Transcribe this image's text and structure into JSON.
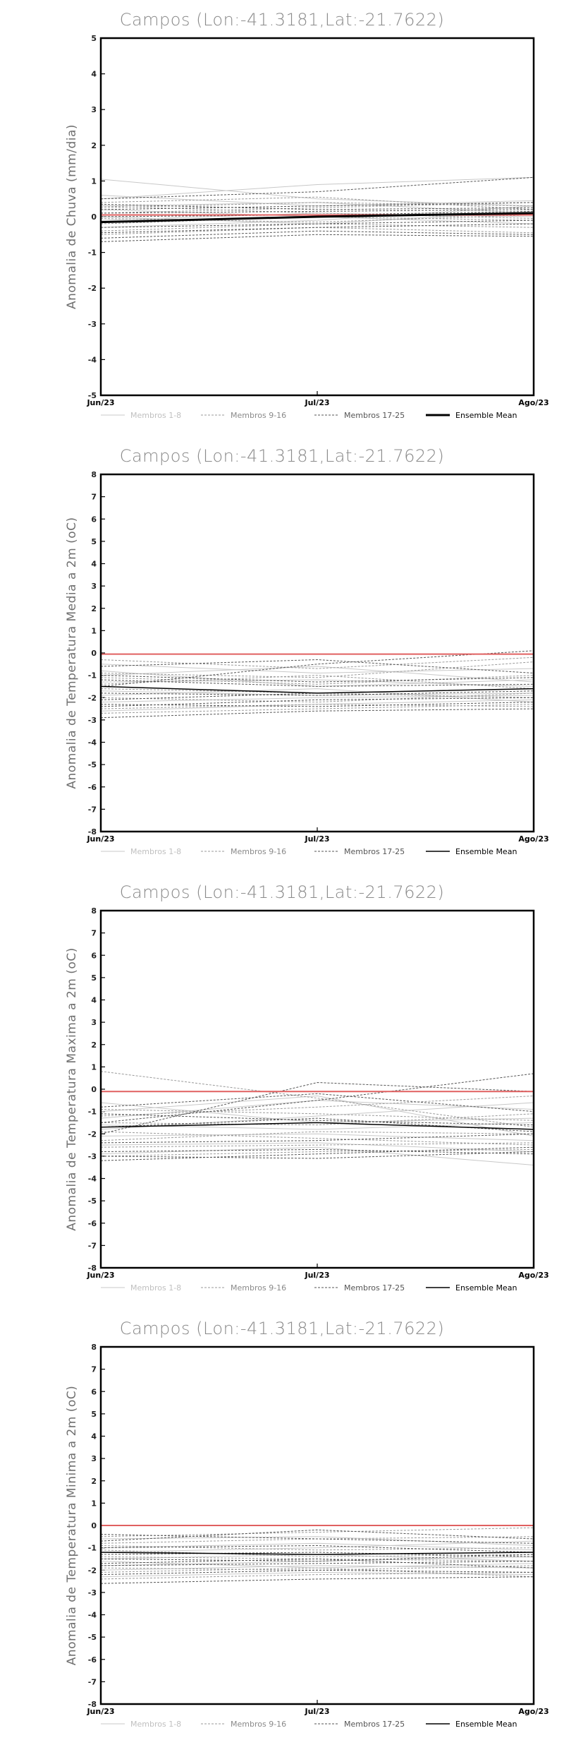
{
  "legend": {
    "items": [
      {
        "label": "Membros 1-8",
        "color": "#c8c8c8",
        "style": "solid-light"
      },
      {
        "label": "Membros 9-16",
        "color": "#9a9a9a",
        "style": "dashed"
      },
      {
        "label": "Membros 17-25",
        "color": "#555555",
        "style": "dashed"
      },
      {
        "label": "Ensemble Mean",
        "color": "#000000",
        "style": "solid"
      }
    ]
  },
  "colors": {
    "observed": "#e06060",
    "frame": "#000000",
    "title": "#8a8a8a",
    "ylabel": "#707070"
  },
  "chart_data": [
    {
      "type": "line",
      "title": "Campos (Lon:-41.3181,Lat:-21.7622)",
      "ylabel": "Anomalia de Chuva (mm/dia)",
      "categories": [
        "Jun/23",
        "Jul/23",
        "Ago/23"
      ],
      "ylim": [
        -5,
        5
      ],
      "yticks": [
        -5,
        -4,
        -3,
        -2,
        -1,
        0,
        1,
        2,
        3,
        4,
        5
      ],
      "mean_bold": true,
      "ensemble_mean": [
        -0.15,
        0.0,
        0.1
      ],
      "observed": [
        0.05,
        0.05,
        0.05
      ],
      "members_1_8": [
        [
          1.05,
          0.5,
          0.3
        ],
        [
          0.5,
          0.9,
          1.1
        ],
        [
          0.3,
          0.4,
          0.1
        ],
        [
          -0.1,
          0.1,
          0.0
        ],
        [
          0.2,
          0.0,
          -0.2
        ],
        [
          -0.3,
          -0.1,
          0.3
        ],
        [
          0.6,
          0.3,
          0.45
        ],
        [
          0.0,
          -0.2,
          0.15
        ]
      ],
      "members_9_16": [
        [
          0.4,
          0.55,
          0.2
        ],
        [
          -0.4,
          -0.2,
          -0.3
        ],
        [
          0.1,
          0.25,
          0.4
        ],
        [
          -0.2,
          0.0,
          -0.1
        ],
        [
          0.3,
          0.1,
          -0.05
        ],
        [
          -0.5,
          -0.3,
          -0.45
        ],
        [
          0.25,
          0.4,
          0.3
        ],
        [
          -0.05,
          -0.15,
          0.05
        ]
      ],
      "members_17_25": [
        [
          0.5,
          0.7,
          1.1
        ],
        [
          0.2,
          0.3,
          0.4
        ],
        [
          -0.6,
          -0.4,
          -0.5
        ],
        [
          0.1,
          0.15,
          0.2
        ],
        [
          -0.3,
          -0.2,
          -0.1
        ],
        [
          -0.7,
          -0.5,
          -0.55
        ],
        [
          0.35,
          0.2,
          0.25
        ],
        [
          -0.45,
          -0.3,
          -0.2
        ],
        [
          0.0,
          0.05,
          0.15
        ]
      ]
    },
    {
      "type": "line",
      "title": "Campos (Lon:-41.3181,Lat:-21.7622)",
      "ylabel": "Anomalia de Temperatura Media a 2m (oC)",
      "categories": [
        "Jun/23",
        "Jul/23",
        "Ago/23"
      ],
      "ylim": [
        -8,
        8
      ],
      "yticks": [
        -8,
        -7,
        -6,
        -5,
        -4,
        -3,
        -2,
        -1,
        0,
        1,
        2,
        3,
        4,
        5,
        6,
        7,
        8
      ],
      "mean_bold": false,
      "ensemble_mean": [
        -1.5,
        -1.8,
        -1.6
      ],
      "observed": [
        -0.05,
        -0.05,
        -0.05
      ],
      "members_1_8": [
        [
          -1.0,
          -0.6,
          -1.3
        ],
        [
          -1.7,
          -1.9,
          -1.8
        ],
        [
          -2.2,
          -2.0,
          -1.9
        ],
        [
          -0.5,
          -0.9,
          -0.7
        ],
        [
          -1.3,
          -1.2,
          -1.5
        ],
        [
          -2.6,
          -2.3,
          -2.1
        ],
        [
          -0.8,
          -1.5,
          -1.2
        ],
        [
          -1.9,
          -1.6,
          -2.2
        ]
      ],
      "members_9_16": [
        [
          -0.3,
          -0.7,
          -0.2
        ],
        [
          -1.1,
          -1.4,
          -1.0
        ],
        [
          -2.0,
          -2.2,
          -1.8
        ],
        [
          -2.5,
          -2.3,
          -2.4
        ],
        [
          -1.4,
          -1.0,
          -1.6
        ],
        [
          -0.9,
          -1.1,
          -0.4
        ],
        [
          -1.6,
          -1.8,
          -2.0
        ],
        [
          -2.7,
          -2.5,
          -2.3
        ]
      ],
      "members_17_25": [
        [
          -1.5,
          -0.5,
          0.1
        ],
        [
          -2.1,
          -1.8,
          -1.6
        ],
        [
          -2.9,
          -2.6,
          -2.5
        ],
        [
          -1.2,
          -1.5,
          -1.4
        ],
        [
          -0.6,
          -0.3,
          -0.9
        ],
        [
          -2.4,
          -2.1,
          -2.0
        ],
        [
          -1.8,
          -1.9,
          -1.7
        ],
        [
          -1.0,
          -1.3,
          -1.1
        ],
        [
          -2.3,
          -2.4,
          -2.2
        ]
      ]
    },
    {
      "type": "line",
      "title": "Campos (Lon:-41.3181,Lat:-21.7622)",
      "ylabel": "Anomalia de Temperatura Maxima a 2m (oC)",
      "categories": [
        "Jun/23",
        "Jul/23",
        "Ago/23"
      ],
      "ylim": [
        -8,
        8
      ],
      "yticks": [
        -8,
        -7,
        -6,
        -5,
        -4,
        -3,
        -2,
        -1,
        0,
        1,
        2,
        3,
        4,
        5,
        6,
        7,
        8
      ],
      "mean_bold": false,
      "ensemble_mean": [
        -1.7,
        -1.5,
        -1.8
      ],
      "observed": [
        -0.1,
        -0.1,
        -0.1
      ],
      "members_1_8": [
        [
          -1.0,
          -0.3,
          -2.1
        ],
        [
          -1.8,
          -1.2,
          -0.6
        ],
        [
          -2.5,
          -2.4,
          -2.8
        ],
        [
          -0.6,
          -1.5,
          -1.3
        ],
        [
          -2.1,
          -2.0,
          -2.3
        ],
        [
          -1.3,
          -0.5,
          -0.9
        ],
        [
          -2.9,
          -2.6,
          -3.4
        ],
        [
          -1.6,
          -1.8,
          -1.5
        ]
      ],
      "members_9_16": [
        [
          0.8,
          -0.4,
          -1.7
        ],
        [
          -1.2,
          -0.8,
          -0.3
        ],
        [
          -2.3,
          -1.9,
          -2.0
        ],
        [
          -3.0,
          -2.8,
          -2.7
        ],
        [
          -0.9,
          -1.1,
          -1.4
        ],
        [
          -1.9,
          -2.2,
          -2.5
        ],
        [
          -2.6,
          -2.5,
          -2.4
        ],
        [
          -1.5,
          -1.6,
          -1.1
        ]
      ],
      "members_17_25": [
        [
          -2.0,
          0.3,
          -0.1
        ],
        [
          -1.5,
          -0.5,
          0.7
        ],
        [
          -3.2,
          -2.9,
          -2.6
        ],
        [
          -2.8,
          -2.7,
          -2.9
        ],
        [
          -0.8,
          -0.2,
          -1.0
        ],
        [
          -1.7,
          -1.3,
          -1.9
        ],
        [
          -3.0,
          -3.1,
          -2.8
        ],
        [
          -2.4,
          -2.3,
          -2.0
        ],
        [
          -1.1,
          -1.4,
          -1.6
        ]
      ]
    },
    {
      "type": "line",
      "title": "Campos (Lon:-41.3181,Lat:-21.7622)",
      "ylabel": "Anomalia de Temperatura Minima a 2m (oC)",
      "categories": [
        "Jun/23",
        "Jul/23",
        "Ago/23"
      ],
      "ylim": [
        -8,
        8
      ],
      "yticks": [
        -8,
        -7,
        -6,
        -5,
        -4,
        -3,
        -2,
        -1,
        0,
        1,
        2,
        3,
        4,
        5,
        6,
        7,
        8
      ],
      "mean_bold": false,
      "ensemble_mean": [
        -1.2,
        -1.3,
        -1.2
      ],
      "observed": [
        0.0,
        0.0,
        0.0
      ],
      "members_1_8": [
        [
          -1.0,
          -0.8,
          -1.1
        ],
        [
          -1.5,
          -1.3,
          -1.6
        ],
        [
          -2.0,
          -1.8,
          -1.9
        ],
        [
          -0.6,
          -0.5,
          -0.9
        ],
        [
          -1.8,
          -1.6,
          -1.4
        ],
        [
          -2.3,
          -2.1,
          -2.2
        ],
        [
          -1.2,
          -1.0,
          -0.7
        ],
        [
          -1.6,
          -1.9,
          -1.7
        ]
      ],
      "members_9_16": [
        [
          -0.5,
          -0.3,
          -0.1
        ],
        [
          -1.1,
          -1.4,
          -1.3
        ],
        [
          -1.9,
          -2.0,
          -1.8
        ],
        [
          -2.4,
          -2.2,
          -2.1
        ],
        [
          -0.9,
          -1.1,
          -1.0
        ],
        [
          -1.4,
          -1.5,
          -1.6
        ],
        [
          -2.1,
          -1.9,
          -2.3
        ],
        [
          -0.8,
          -0.6,
          -0.5
        ]
      ],
      "members_17_25": [
        [
          -0.7,
          -0.2,
          -0.6
        ],
        [
          -1.3,
          -1.2,
          -1.4
        ],
        [
          -2.6,
          -2.4,
          -2.3
        ],
        [
          -1.7,
          -1.5,
          -1.9
        ],
        [
          -1.0,
          -0.9,
          -1.2
        ],
        [
          -2.2,
          -2.0,
          -2.1
        ],
        [
          -0.4,
          -0.6,
          -0.8
        ],
        [
          -1.8,
          -1.7,
          -1.6
        ],
        [
          -1.5,
          -1.6,
          -1.3
        ]
      ]
    }
  ]
}
